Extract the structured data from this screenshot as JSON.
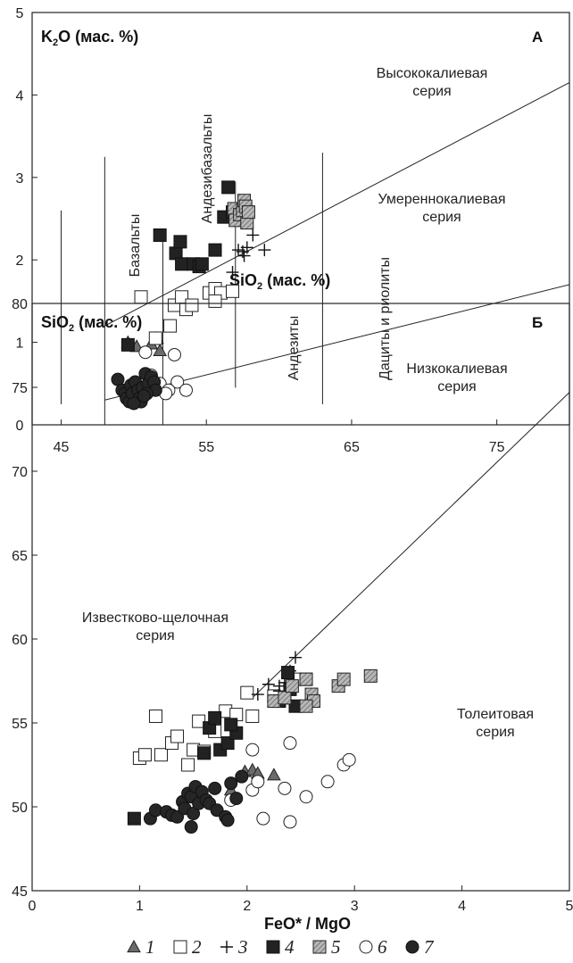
{
  "chart_data": [
    {
      "panel": "А",
      "type": "scatter",
      "xlim": [
        43,
        80
      ],
      "ylim": [
        0,
        5
      ],
      "xticks": [
        45,
        55,
        65,
        75
      ],
      "yticks": [
        0,
        1,
        2,
        3,
        4,
        5
      ],
      "y_title": "K2O  (мас. %)",
      "x_title": "SiO2  (мас. %)",
      "field_labels": {
        "basalts": "Базальты",
        "andesibasalts": "Андезибазальты",
        "andesites": "Андезиты",
        "dacites": "Дациты и риолиты",
        "high_k": [
          "Высококалиевая",
          "серия"
        ],
        "medium_k": [
          "Умереннокалиевая",
          "серия"
        ],
        "low_k": [
          "Низкокалиевая",
          "серия"
        ]
      },
      "lines": [
        {
          "x": [
            48,
            80
          ],
          "y": [
            1.2,
            4.15
          ]
        },
        {
          "x": [
            48,
            80
          ],
          "y": [
            0.3,
            1.7
          ]
        },
        {
          "x": [
            45,
            45
          ],
          "y": [
            0.25,
            2.6
          ]
        },
        {
          "x": [
            48,
            48
          ],
          "y": [
            0,
            3.25
          ]
        },
        {
          "x": [
            52,
            52
          ],
          "y": [
            0,
            2.3
          ]
        },
        {
          "x": [
            57,
            57
          ],
          "y": [
            0.45,
            2.95
          ]
        },
        {
          "x": [
            63,
            63
          ],
          "y": [
            0.25,
            3.3
          ]
        }
      ],
      "series": [
        {
          "symbol": "triangle",
          "points": [
            [
              49.6,
              1.0
            ],
            [
              50.2,
              0.95
            ],
            [
              51.6,
              1.05
            ],
            [
              51.8,
              0.9
            ],
            [
              51.2,
              0.98
            ]
          ]
        },
        {
          "symbol": "square-open",
          "points": [
            [
              50.5,
              1.55
            ],
            [
              51.5,
              1.05
            ],
            [
              52.5,
              1.2
            ],
            [
              52.8,
              1.45
            ],
            [
              53.3,
              1.55
            ],
            [
              53.6,
              1.4
            ],
            [
              54.0,
              1.45
            ],
            [
              55.2,
              1.6
            ],
            [
              55.6,
              1.65
            ],
            [
              56.0,
              1.6
            ],
            [
              56.8,
              1.62
            ],
            [
              55.6,
              1.5
            ]
          ]
        },
        {
          "symbol": "plus",
          "points": [
            [
              56.8,
              1.85
            ],
            [
              57.5,
              2.1
            ],
            [
              57.6,
              2.05
            ],
            [
              57.8,
              2.15
            ],
            [
              58.2,
              2.3
            ],
            [
              59.0,
              2.12
            ],
            [
              57.2,
              2.12
            ]
          ]
        },
        {
          "symbol": "square-filled",
          "points": [
            [
              49.6,
              0.97
            ],
            [
              51.8,
              2.3
            ],
            [
              52.9,
              2.08
            ],
            [
              53.2,
              2.22
            ],
            [
              53.3,
              1.95
            ],
            [
              54.1,
              1.95
            ],
            [
              54.5,
              1.92
            ],
            [
              54.7,
              1.95
            ],
            [
              55.6,
              2.12
            ],
            [
              56.2,
              2.52
            ],
            [
              56.5,
              2.88
            ],
            [
              56.8,
              2.58
            ]
          ]
        },
        {
          "symbol": "square-hatched",
          "points": [
            [
              56.9,
              2.62
            ],
            [
              57.0,
              2.48
            ],
            [
              57.3,
              2.55
            ],
            [
              57.5,
              2.6
            ],
            [
              57.6,
              2.72
            ],
            [
              57.7,
              2.65
            ],
            [
              57.8,
              2.45
            ],
            [
              57.9,
              2.58
            ]
          ]
        },
        {
          "symbol": "circle-open",
          "points": [
            [
              50.8,
              0.88
            ],
            [
              51.2,
              0.6
            ],
            [
              51.8,
              0.5
            ],
            [
              52.8,
              0.85
            ],
            [
              53.0,
              0.52
            ],
            [
              53.6,
              0.42
            ],
            [
              52.4,
              0.42
            ],
            [
              52.2,
              0.38
            ]
          ]
        },
        {
          "symbol": "circle-filled",
          "points": [
            [
              48.9,
              0.55
            ],
            [
              49.2,
              0.42
            ],
            [
              49.4,
              0.38
            ],
            [
              49.5,
              0.32
            ],
            [
              49.7,
              0.28
            ],
            [
              49.8,
              0.48
            ],
            [
              49.9,
              0.38
            ],
            [
              50.1,
              0.52
            ],
            [
              50.3,
              0.42
            ],
            [
              50.4,
              0.32
            ],
            [
              50.5,
              0.28
            ],
            [
              50.6,
              0.45
            ],
            [
              50.8,
              0.62
            ],
            [
              51.0,
              0.5
            ],
            [
              51.2,
              0.58
            ],
            [
              51.4,
              0.52
            ],
            [
              51.5,
              0.42
            ],
            [
              50.9,
              0.38
            ],
            [
              50.0,
              0.26
            ],
            [
              50.7,
              0.35
            ]
          ]
        }
      ]
    },
    {
      "panel": "Б",
      "type": "scatter",
      "xlim": [
        0,
        5
      ],
      "ylim": [
        45,
        80
      ],
      "xticks": [
        0,
        1,
        2,
        3,
        4,
        5
      ],
      "yticks": [
        45,
        50,
        55,
        60,
        65,
        70,
        75,
        80
      ],
      "y_title": "SiO2   (мас. %)",
      "x_title": "FeO* / MgO",
      "field_labels": {
        "calc_alkaline": [
          "Известково-щелочная",
          "серия"
        ],
        "tholeiitic": [
          "Толеитовая",
          "серия"
        ]
      },
      "lines": [
        {
          "x": [
            2.05,
            5.0
          ],
          "y": [
            56.5,
            74.7
          ]
        }
      ],
      "series": [
        {
          "symbol": "triangle",
          "points": [
            [
              1.85,
              51.0
            ],
            [
              1.98,
              52.1
            ],
            [
              2.05,
              52.2
            ],
            [
              2.1,
              52.0
            ],
            [
              2.25,
              51.9
            ]
          ]
        },
        {
          "symbol": "square-open",
          "points": [
            [
              1.0,
              52.9
            ],
            [
              1.05,
              53.1
            ],
            [
              1.15,
              55.4
            ],
            [
              1.2,
              53.1
            ],
            [
              1.3,
              53.8
            ],
            [
              1.35,
              54.2
            ],
            [
              1.45,
              52.5
            ],
            [
              1.5,
              53.4
            ],
            [
              1.6,
              53.3
            ],
            [
              1.7,
              54.5
            ],
            [
              1.8,
              55.7
            ],
            [
              1.9,
              55.5
            ],
            [
              2.0,
              56.8
            ],
            [
              2.05,
              55.4
            ],
            [
              2.25,
              56.6
            ],
            [
              2.45,
              57.6
            ],
            [
              2.55,
              57.6
            ],
            [
              1.55,
              55.1
            ]
          ]
        },
        {
          "symbol": "plus",
          "points": [
            [
              2.1,
              56.7
            ],
            [
              2.2,
              57.3
            ],
            [
              2.3,
              57.2
            ],
            [
              2.4,
              58.1
            ],
            [
              2.45,
              58.9
            ],
            [
              2.3,
              56.9
            ],
            [
              2.35,
              57.4
            ]
          ]
        },
        {
          "symbol": "square-filled",
          "points": [
            [
              0.95,
              49.3
            ],
            [
              1.6,
              53.2
            ],
            [
              1.65,
              54.7
            ],
            [
              1.7,
              55.3
            ],
            [
              1.75,
              53.4
            ],
            [
              1.82,
              53.8
            ],
            [
              1.9,
              54.4
            ],
            [
              2.3,
              56.3
            ],
            [
              2.35,
              56.5
            ],
            [
              2.4,
              57.0
            ],
            [
              2.45,
              56.0
            ],
            [
              2.38,
              58.0
            ],
            [
              1.85,
              54.9
            ]
          ]
        },
        {
          "symbol": "square-hatched",
          "points": [
            [
              2.25,
              56.3
            ],
            [
              2.35,
              56.5
            ],
            [
              2.42,
              57.2
            ],
            [
              2.55,
              57.6
            ],
            [
              2.6,
              56.7
            ],
            [
              2.62,
              56.3
            ],
            [
              2.85,
              57.2
            ],
            [
              2.9,
              57.6
            ],
            [
              3.15,
              57.8
            ],
            [
              2.55,
              56.0
            ]
          ]
        },
        {
          "symbol": "circle-open",
          "points": [
            [
              1.85,
              50.4
            ],
            [
              2.05,
              51.0
            ],
            [
              2.05,
              53.4
            ],
            [
              2.1,
              51.5
            ],
            [
              2.15,
              49.3
            ],
            [
              2.35,
              51.1
            ],
            [
              2.4,
              49.1
            ],
            [
              2.4,
              53.8
            ],
            [
              2.55,
              50.6
            ],
            [
              2.75,
              51.5
            ],
            [
              2.9,
              52.5
            ],
            [
              2.95,
              52.8
            ]
          ]
        },
        {
          "symbol": "circle-filled",
          "points": [
            [
              1.1,
              49.3
            ],
            [
              1.15,
              49.8
            ],
            [
              1.25,
              49.7
            ],
            [
              1.3,
              49.5
            ],
            [
              1.35,
              49.4
            ],
            [
              1.4,
              50.3
            ],
            [
              1.42,
              49.9
            ],
            [
              1.45,
              50.8
            ],
            [
              1.48,
              50.6
            ],
            [
              1.5,
              49.6
            ],
            [
              1.52,
              51.2
            ],
            [
              1.55,
              50.2
            ],
            [
              1.58,
              50.9
            ],
            [
              1.62,
              50.4
            ],
            [
              1.65,
              50.2
            ],
            [
              1.7,
              51.1
            ],
            [
              1.72,
              49.8
            ],
            [
              1.8,
              49.4
            ],
            [
              1.82,
              49.2
            ],
            [
              1.85,
              51.4
            ],
            [
              1.9,
              50.5
            ],
            [
              1.95,
              51.8
            ],
            [
              1.48,
              48.8
            ]
          ]
        }
      ]
    }
  ],
  "legend": [
    {
      "symbol": "triangle",
      "label": "1"
    },
    {
      "symbol": "square-open",
      "label": "2"
    },
    {
      "symbol": "plus",
      "label": "3"
    },
    {
      "symbol": "square-filled",
      "label": "4"
    },
    {
      "symbol": "square-hatched",
      "label": "5"
    },
    {
      "symbol": "circle-open",
      "label": "6"
    },
    {
      "symbol": "circle-filled",
      "label": "7"
    }
  ]
}
